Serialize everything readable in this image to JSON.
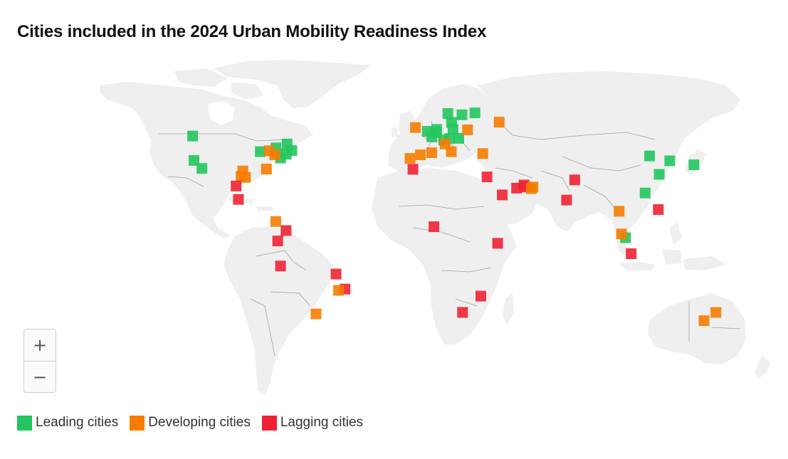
{
  "title": "Cities included in the 2024 Urban Mobility Readiness Index",
  "zoom": {
    "in_label": "+",
    "out_label": "−"
  },
  "legend": [
    {
      "key": "leading",
      "label": "Leading cities",
      "color": "#22c55e"
    },
    {
      "key": "developing",
      "label": "Developing cities",
      "color": "#f57c00"
    },
    {
      "key": "lagging",
      "label": "Lagging cities",
      "color": "#ee2233"
    }
  ],
  "map": {
    "land_color": "#efefef",
    "border_color": "#a3a3a3",
    "projection": "equirectangular-like world map",
    "cities": [
      {
        "lon": -122.4,
        "lat": 37.8,
        "category": "leading"
      },
      {
        "lon": -118.2,
        "lat": 34.0,
        "category": "leading"
      },
      {
        "lon": -123.1,
        "lat": 49.3,
        "category": "leading"
      },
      {
        "lon": -87.6,
        "lat": 41.9,
        "category": "leading"
      },
      {
        "lon": -79.4,
        "lat": 43.7,
        "category": "leading"
      },
      {
        "lon": -73.6,
        "lat": 45.5,
        "category": "leading"
      },
      {
        "lon": -74.0,
        "lat": 40.7,
        "category": "leading"
      },
      {
        "lon": -77.0,
        "lat": 38.9,
        "category": "leading"
      },
      {
        "lon": -71.1,
        "lat": 42.4,
        "category": "leading"
      },
      {
        "lon": -83.0,
        "lat": 42.3,
        "category": "developing"
      },
      {
        "lon": -80.0,
        "lat": 40.4,
        "category": "developing"
      },
      {
        "lon": -84.4,
        "lat": 33.7,
        "category": "developing"
      },
      {
        "lon": -96.8,
        "lat": 32.8,
        "category": "developing"
      },
      {
        "lon": -95.4,
        "lat": 29.8,
        "category": "developing"
      },
      {
        "lon": -97.7,
        "lat": 30.3,
        "category": "developing"
      },
      {
        "lon": -100.3,
        "lat": 25.7,
        "category": "lagging"
      },
      {
        "lon": -99.1,
        "lat": 19.4,
        "category": "lagging"
      },
      {
        "lon": -79.5,
        "lat": 9.0,
        "category": "developing"
      },
      {
        "lon": -74.1,
        "lat": 4.7,
        "category": "lagging"
      },
      {
        "lon": -78.5,
        "lat": -0.2,
        "category": "lagging"
      },
      {
        "lon": -77.0,
        "lat": -12.0,
        "category": "lagging"
      },
      {
        "lon": -47.9,
        "lat": -15.8,
        "category": "lagging"
      },
      {
        "lon": -43.2,
        "lat": -22.9,
        "category": "lagging"
      },
      {
        "lon": -46.6,
        "lat": -23.5,
        "category": "developing"
      },
      {
        "lon": -58.4,
        "lat": -34.6,
        "category": "developing"
      },
      {
        "lon": 10.7,
        "lat": 59.9,
        "category": "leading"
      },
      {
        "lon": 18.1,
        "lat": 59.3,
        "category": "leading"
      },
      {
        "lon": 24.9,
        "lat": 60.2,
        "category": "leading"
      },
      {
        "lon": 12.6,
        "lat": 55.7,
        "category": "leading"
      },
      {
        "lon": 4.9,
        "lat": 52.4,
        "category": "leading"
      },
      {
        "lon": -0.1,
        "lat": 51.5,
        "category": "leading"
      },
      {
        "lon": 2.3,
        "lat": 48.9,
        "category": "leading"
      },
      {
        "lon": 13.4,
        "lat": 52.5,
        "category": "leading"
      },
      {
        "lon": 11.6,
        "lat": 48.1,
        "category": "leading"
      },
      {
        "lon": 8.5,
        "lat": 47.4,
        "category": "leading"
      },
      {
        "lon": 16.4,
        "lat": 48.2,
        "category": "leading"
      },
      {
        "lon": 4.4,
        "lat": 50.9,
        "category": "leading"
      },
      {
        "lon": -6.3,
        "lat": 53.3,
        "category": "developing"
      },
      {
        "lon": 21.0,
        "lat": 52.2,
        "category": "developing"
      },
      {
        "lon": 37.6,
        "lat": 55.8,
        "category": "developing"
      },
      {
        "lon": 9.2,
        "lat": 45.5,
        "category": "developing"
      },
      {
        "lon": 12.5,
        "lat": 41.9,
        "category": "developing"
      },
      {
        "lon": 2.2,
        "lat": 41.4,
        "category": "developing"
      },
      {
        "lon": -3.7,
        "lat": 40.4,
        "category": "developing"
      },
      {
        "lon": -9.1,
        "lat": 38.7,
        "category": "developing"
      },
      {
        "lon": 29.0,
        "lat": 41.0,
        "category": "developing"
      },
      {
        "lon": -7.6,
        "lat": 33.6,
        "category": "lagging"
      },
      {
        "lon": 31.2,
        "lat": 30.0,
        "category": "lagging"
      },
      {
        "lon": 39.2,
        "lat": 21.5,
        "category": "lagging"
      },
      {
        "lon": 46.7,
        "lat": 24.7,
        "category": "lagging"
      },
      {
        "lon": 51.5,
        "lat": 25.3,
        "category": "lagging"
      },
      {
        "lon": 50.6,
        "lat": 26.2,
        "category": "lagging"
      },
      {
        "lon": 54.4,
        "lat": 24.5,
        "category": "developing"
      },
      {
        "lon": 55.3,
        "lat": 25.2,
        "category": "developing"
      },
      {
        "lon": 77.2,
        "lat": 28.6,
        "category": "lagging"
      },
      {
        "lon": 72.9,
        "lat": 19.1,
        "category": "lagging"
      },
      {
        "lon": 3.4,
        "lat": 6.5,
        "category": "lagging"
      },
      {
        "lon": 36.8,
        "lat": -1.3,
        "category": "lagging"
      },
      {
        "lon": 28.0,
        "lat": -26.2,
        "category": "lagging"
      },
      {
        "lon": 18.4,
        "lat": -33.9,
        "category": "lagging"
      },
      {
        "lon": 116.4,
        "lat": 39.9,
        "category": "leading"
      },
      {
        "lon": 121.5,
        "lat": 31.2,
        "category": "leading"
      },
      {
        "lon": 114.1,
        "lat": 22.4,
        "category": "leading"
      },
      {
        "lon": 127.0,
        "lat": 37.6,
        "category": "leading"
      },
      {
        "lon": 139.7,
        "lat": 35.7,
        "category": "leading"
      },
      {
        "lon": 103.8,
        "lat": 1.35,
        "category": "leading"
      },
      {
        "lon": 100.5,
        "lat": 13.8,
        "category": "developing"
      },
      {
        "lon": 101.7,
        "lat": 3.1,
        "category": "developing"
      },
      {
        "lon": 121.0,
        "lat": 14.6,
        "category": "lagging"
      },
      {
        "lon": 106.8,
        "lat": -6.2,
        "category": "lagging"
      },
      {
        "lon": 151.2,
        "lat": -33.9,
        "category": "developing"
      },
      {
        "lon": 145.0,
        "lat": -37.8,
        "category": "developing"
      }
    ]
  }
}
